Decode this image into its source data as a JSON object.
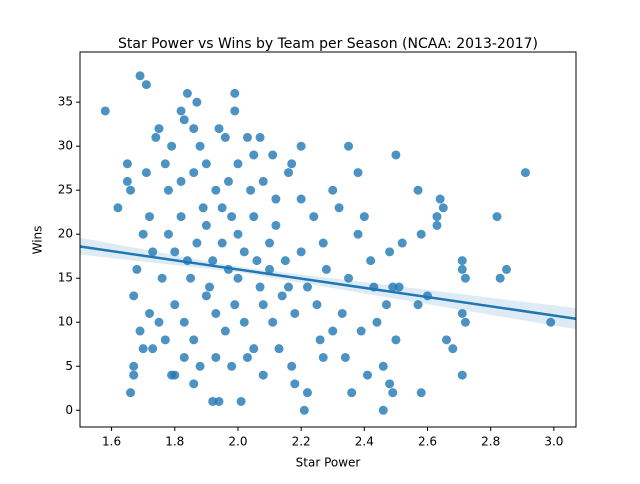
{
  "chart_data": {
    "type": "scatter",
    "title": "Star Power vs Wins by Team per Season (NCAA: 2013-2017)",
    "x_label": "Star Power",
    "y_label": "Wins",
    "xlim": [
      1.5,
      3.07
    ],
    "ylim": [
      -1.9,
      40.7
    ],
    "xticks": [
      1.6,
      1.8,
      {
        "value": 2,
        "label": "2.0"
      },
      2.2,
      2.4,
      2.6,
      2.8,
      {
        "value": 3,
        "label": "3.0"
      }
    ],
    "yticks": [
      0,
      5,
      10,
      15,
      20,
      25,
      30,
      35
    ],
    "series": [
      {
        "color": "#1f77b4",
        "x": [
          1.58,
          1.69,
          1.71,
          1.84,
          1.99,
          1.62,
          1.66,
          1.67,
          1.67,
          2.91,
          2.99,
          2.82,
          2.85,
          2.83,
          2.72,
          2.71,
          2.71,
          2.71,
          2.72,
          2.71,
          2.68,
          2.66,
          2.63,
          2.63,
          2.64,
          2.65,
          2.6,
          2.58,
          2.57,
          2.57,
          2.5,
          2.48,
          2.46,
          2.21,
          2.49,
          2.58,
          2.52,
          2.48,
          2.49,
          2.51,
          2.47,
          2.5,
          2.46,
          2.41,
          2.35,
          2.38,
          2.36,
          2.27,
          2.22,
          2.18,
          2.01,
          1.94,
          1.92,
          1.86,
          1.8,
          1.79,
          1.73,
          1.67,
          1.65,
          1.66,
          1.65,
          1.71,
          1.74,
          1.75,
          1.82,
          1.83,
          1.87,
          1.99,
          1.86,
          1.96,
          2.07,
          2.11,
          2.17,
          2.2,
          2.16,
          2.05,
          1.78,
          1.8,
          1.82,
          1.85,
          1.87,
          1.9,
          1.92,
          1.95,
          1.97,
          2.0,
          2.02,
          2.05,
          2.07,
          2.1,
          2.12,
          2.15,
          1.8,
          1.83,
          1.86,
          1.9,
          1.93,
          1.96,
          1.99,
          2.02,
          2.05,
          2.08,
          2.11,
          2.14,
          2.18,
          2.22,
          2.25,
          2.28,
          2.3,
          2.33,
          2.35,
          2.38,
          2.4,
          2.42,
          2.32,
          2.3,
          2.27,
          2.24,
          2.2,
          1.78,
          1.82,
          1.86,
          1.9,
          1.93,
          1.97,
          2.0,
          2.04,
          2.08,
          2.12,
          1.76,
          1.73,
          1.7,
          1.72,
          1.68,
          1.75,
          1.77,
          1.83,
          1.88,
          1.93,
          1.98,
          2.03,
          2.08,
          2.13,
          2.17,
          1.89,
          1.95,
          2.0,
          2.06,
          1.84,
          1.91,
          1.98,
          2.1,
          2.16,
          2.2,
          2.26,
          2.34,
          2.39,
          2.44,
          2.43,
          1.72,
          1.69,
          1.7,
          1.79,
          1.88,
          1.94,
          2.03,
          1.77
        ],
        "y": [
          34,
          38,
          37,
          36,
          36,
          23,
          2,
          4,
          5,
          27,
          10,
          22,
          16,
          15,
          15,
          16,
          17,
          11,
          10,
          4,
          7,
          8,
          21,
          22,
          24,
          23,
          13,
          20,
          12,
          25,
          29,
          3,
          0,
          0,
          2,
          2,
          19,
          18,
          14,
          14,
          12,
          8,
          5,
          4,
          30,
          27,
          2,
          6,
          2,
          3,
          1,
          1,
          1,
          3,
          4,
          4,
          7,
          13,
          28,
          25,
          26,
          27,
          31,
          32,
          34,
          33,
          35,
          34,
          32,
          31,
          31,
          29,
          28,
          30,
          27,
          29,
          20,
          18,
          22,
          15,
          19,
          21,
          17,
          23,
          16,
          20,
          18,
          22,
          14,
          19,
          21,
          17,
          12,
          10,
          8,
          13,
          11,
          9,
          12,
          10,
          7,
          12,
          10,
          13,
          11,
          14,
          12,
          16,
          9,
          11,
          15,
          20,
          22,
          17,
          23,
          25,
          19,
          22,
          24,
          25,
          26,
          27,
          28,
          25,
          26,
          28,
          25,
          26,
          24,
          15,
          18,
          20,
          22,
          16,
          10,
          8,
          6,
          5,
          6,
          5,
          6,
          4,
          7,
          5,
          23,
          19,
          15,
          17,
          17,
          14,
          22,
          16,
          14,
          18,
          8,
          6,
          9,
          10,
          14,
          11,
          9,
          7,
          30,
          30,
          32,
          31,
          28
        ]
      }
    ],
    "fit": {
      "color": "#1f77b4",
      "x": [
        1.5,
        2.0,
        3.07
      ],
      "y": [
        18.6,
        16.0,
        10.4
      ],
      "ci_lower": [
        17.7,
        15.7,
        9.2
      ],
      "ci_upper": [
        19.6,
        16.3,
        11.6
      ]
    }
  }
}
